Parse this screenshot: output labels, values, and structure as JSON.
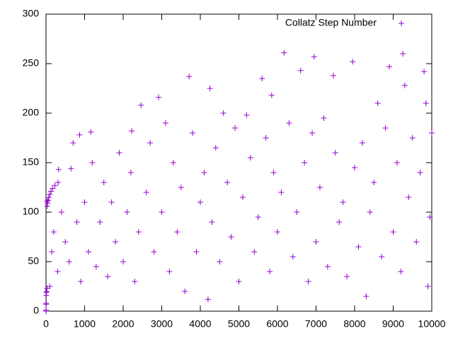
{
  "chart_data": {
    "type": "scatter",
    "x": [
      1,
      2,
      3,
      6,
      7,
      9,
      18,
      25,
      27,
      31,
      41,
      54,
      73,
      97,
      129,
      171,
      231,
      313,
      327,
      649,
      703,
      871,
      1161,
      2223,
      2463,
      2919,
      3711,
      6171,
      4250,
      5600,
      5850,
      6600,
      6950,
      7450,
      7950,
      8900,
      9250,
      9300,
      9800,
      9850,
      3100,
      4600,
      5200,
      8600,
      100,
      150,
      200,
      300,
      400,
      500,
      600,
      800,
      900,
      1000,
      1100,
      1200,
      1300,
      1400,
      1500,
      1600,
      1700,
      1800,
      1900,
      2000,
      2100,
      2200,
      2300,
      2400,
      2600,
      2700,
      2800,
      3000,
      3200,
      3300,
      3400,
      3500,
      3600,
      3800,
      3900,
      4000,
      4100,
      4200,
      4300,
      4400,
      4500,
      4700,
      4800,
      4900,
      5000,
      5100,
      5300,
      5400,
      5500,
      5700,
      5800,
      5900,
      6000,
      6100,
      6300,
      6400,
      6500,
      6700,
      6800,
      6900,
      7000,
      7100,
      7200,
      7300,
      7500,
      7600,
      7700,
      7800,
      8000,
      8100,
      8200,
      8300,
      8400,
      8500,
      8700,
      8800,
      9000,
      9100,
      9200,
      9400,
      9500,
      9600,
      9700,
      9900,
      10000,
      9950
    ],
    "series": [
      {
        "name": "Collatz Step Number",
        "color": "#9400d3",
        "values": [
          0,
          1,
          7,
          8,
          16,
          19,
          20,
          23,
          111,
          106,
          109,
          112,
          115,
          118,
          121,
          124,
          127,
          130,
          143,
          144,
          170,
          178,
          181,
          182,
          208,
          216,
          237,
          261,
          225,
          235,
          218,
          243,
          257,
          238,
          252,
          247,
          260,
          228,
          242,
          210,
          190,
          200,
          198,
          210,
          25,
          60,
          80,
          40,
          100,
          70,
          50,
          90,
          30,
          110,
          60,
          150,
          45,
          90,
          130,
          35,
          110,
          70,
          160,
          50,
          100,
          140,
          30,
          80,
          120,
          170,
          60,
          100,
          40,
          150,
          80,
          125,
          20,
          180,
          60,
          110,
          140,
          12,
          90,
          165,
          50,
          130,
          75,
          185,
          30,
          115,
          155,
          60,
          95,
          175,
          40,
          140,
          80,
          120,
          190,
          55,
          100,
          150,
          30,
          180,
          70,
          125,
          195,
          45,
          160,
          90,
          110,
          35,
          145,
          65,
          170,
          15,
          100,
          130,
          55,
          185,
          80,
          150,
          40,
          115,
          175,
          70,
          140,
          25,
          180,
          95
        ]
      }
    ],
    "xlim": [
      0,
      10000
    ],
    "ylim": [
      0,
      300
    ],
    "xticks": [
      0,
      1000,
      2000,
      3000,
      4000,
      5000,
      6000,
      7000,
      8000,
      9000,
      10000
    ],
    "yticks": [
      0,
      50,
      100,
      150,
      200,
      250,
      300
    ],
    "legend": "top-right"
  }
}
